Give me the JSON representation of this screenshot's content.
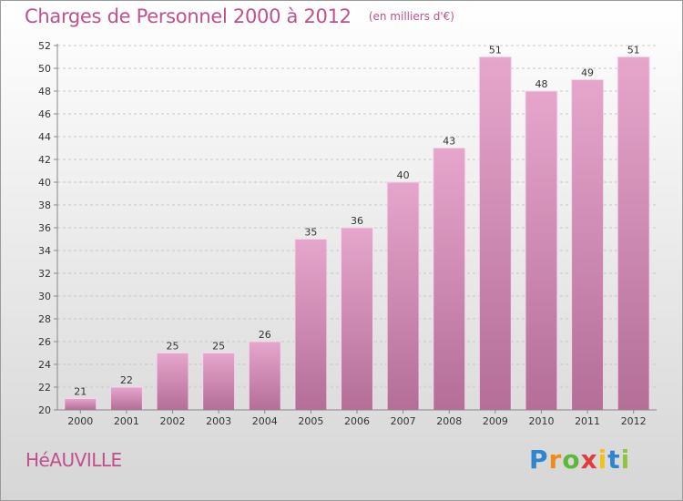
{
  "chart_data": {
    "type": "bar",
    "title": "Charges de Personnel 2000 à 2012",
    "subtitle": "(en milliers d'€)",
    "categories": [
      "2000",
      "2001",
      "2002",
      "2003",
      "2004",
      "2005",
      "2006",
      "2007",
      "2008",
      "2009",
      "2010",
      "2011",
      "2012"
    ],
    "values": [
      21,
      22,
      25,
      25,
      26,
      35,
      36,
      40,
      43,
      51,
      48,
      49,
      51
    ],
    "ylim": [
      20,
      52
    ],
    "yticks": [
      20,
      22,
      24,
      26,
      28,
      30,
      32,
      34,
      36,
      38,
      40,
      42,
      44,
      46,
      48,
      50,
      52
    ],
    "grid": true,
    "legend": "none",
    "bar_color_top": "#e6a6cc",
    "bar_color_bottom": "#b46e98"
  },
  "commune": "HéAUVILLE",
  "brand": {
    "letters": [
      "P",
      "r",
      "o",
      "x",
      "i",
      "t",
      "i"
    ],
    "colors": [
      "#2e86d1",
      "#f08a1c",
      "#5bb83a",
      "#e33b3b",
      "#f2c21b",
      "#2e86d1",
      "#8cc63e"
    ]
  }
}
